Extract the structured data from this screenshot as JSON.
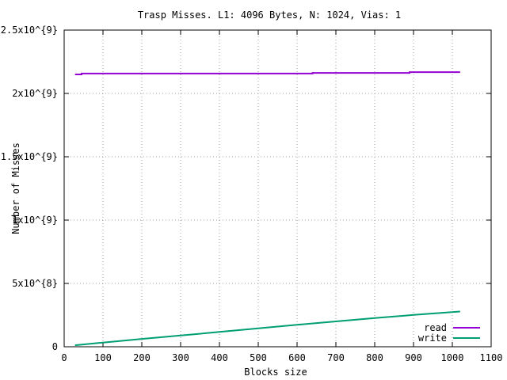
{
  "chart_data": {
    "type": "line",
    "title": "Trasp Misses. L1: 4096 Bytes, N: 1024, Vias: 1",
    "xlabel": "Blocks size",
    "ylabel": "Number of Misses",
    "xlim": [
      0,
      1100
    ],
    "ylim": [
      0,
      2500000000
    ],
    "xticks": [
      0,
      100,
      200,
      300,
      400,
      500,
      600,
      700,
      800,
      900,
      1000,
      1100
    ],
    "xtick_labels": [
      "0",
      "100",
      "200",
      "300",
      "400",
      "500",
      "600",
      "700",
      "800",
      "900",
      "1000",
      "1100"
    ],
    "yticks": [
      0,
      500000000,
      1000000000,
      1500000000,
      2000000000,
      2500000000
    ],
    "ytick_labels": [
      "0",
      "5x10^{8}",
      "1x10^{9}",
      "1.5x10^{9}",
      "2x10^{9}",
      "2.5x10^{9}"
    ],
    "grid": true,
    "legend_position": "bottom-right",
    "series": [
      {
        "name": "read",
        "color": "#9400d3",
        "points": [
          [
            28,
            2150000000
          ],
          [
            45,
            2150000000
          ],
          [
            45,
            2157000000
          ],
          [
            640,
            2157000000
          ],
          [
            640,
            2162000000
          ],
          [
            890,
            2162000000
          ],
          [
            890,
            2168000000
          ],
          [
            1020,
            2168000000
          ]
        ]
      },
      {
        "name": "write",
        "color": "#009e73",
        "points": [
          [
            28,
            12000000
          ],
          [
            100,
            33000000
          ],
          [
            200,
            62000000
          ],
          [
            300,
            89000000
          ],
          [
            400,
            117000000
          ],
          [
            500,
            145000000
          ],
          [
            600,
            173000000
          ],
          [
            700,
            200000000
          ],
          [
            800,
            226000000
          ],
          [
            900,
            251000000
          ],
          [
            1020,
            278000000
          ]
        ]
      }
    ]
  }
}
